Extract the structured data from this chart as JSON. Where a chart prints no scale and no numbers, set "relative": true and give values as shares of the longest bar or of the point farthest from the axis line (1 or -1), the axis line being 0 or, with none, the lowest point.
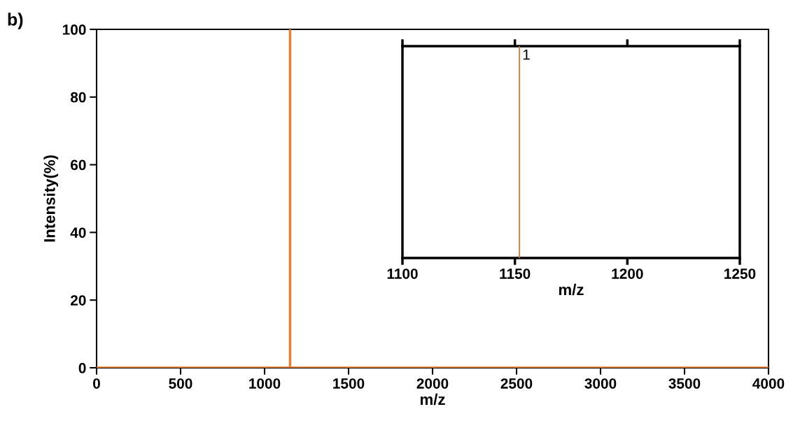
{
  "chart_data": [
    {
      "type": "line",
      "xlabel": "m/z",
      "ylabel": "Intensity(%)",
      "annotations": [
        "b)"
      ],
      "series": [
        {
          "color": "#ed7d31",
          "x": [
            0,
            1152,
            1152,
            1152,
            4000
          ],
          "values": [
            0,
            0,
            100,
            0,
            0
          ]
        }
      ],
      "xlim": [
        0,
        4000
      ],
      "xticks": [
        0,
        500,
        1000,
        1500,
        2000,
        2500,
        3000,
        3500,
        4000
      ],
      "ylim": [
        0,
        100
      ],
      "yticks": [
        0,
        20,
        40,
        60,
        80,
        100
      ]
    },
    {
      "type": "line",
      "xlabel": "m/z",
      "relative": true,
      "tick_labels": "x",
      "annotations": [
        {
          "text": "1",
          "x": 1152,
          "y": 1
        }
      ],
      "series": [
        {
          "color": "#e06c1e",
          "x": [
            1152,
            1152
          ],
          "values": [
            0,
            1
          ]
        }
      ],
      "xlim": [
        1100,
        1250
      ],
      "xticks": [
        1100,
        1150,
        1200,
        1250
      ]
    }
  ]
}
